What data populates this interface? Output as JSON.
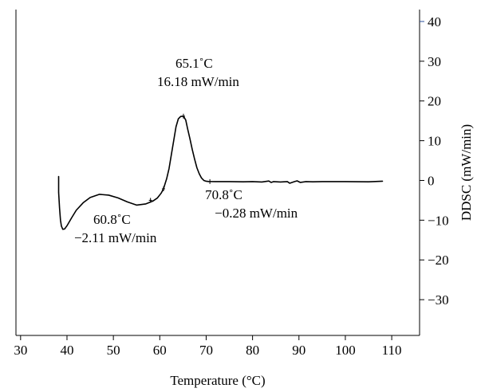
{
  "chart_data": {
    "type": "line",
    "title": "",
    "xlabel": "Temperature (°C)",
    "ylabel": "DDSC (mW/min)",
    "xlim": [
      29,
      116
    ],
    "ylim": [
      -39,
      43
    ],
    "x_ticks": [
      30,
      40,
      50,
      60,
      70,
      80,
      90,
      100,
      110
    ],
    "x_tick_labels": [
      "30",
      "40",
      "50",
      "60",
      "70",
      "80",
      "90",
      "100",
      "110"
    ],
    "y_ticks": [
      40,
      30,
      20,
      10,
      0,
      -10,
      -20,
      -30
    ],
    "y_tick_labels": [
      "40",
      "30",
      "20",
      "10",
      "0",
      "−10",
      "−20",
      "−30"
    ],
    "y_axis_side": "right",
    "grid": false,
    "series": [
      {
        "color": "#000000",
        "x": [
          38.2,
          38.2,
          38.4,
          38.6,
          38.8,
          39.1,
          39.5,
          40.0,
          41.0,
          42.0,
          43.5,
          45.0,
          47.0,
          49.0,
          51.0,
          53.0,
          55.0,
          57.0,
          58.5,
          59.5,
          60.3,
          60.8,
          61.5,
          62.0,
          62.5,
          63.0,
          63.5,
          64.0,
          64.5,
          65.1,
          65.6,
          66.0,
          66.5,
          67.0,
          67.5,
          68.0,
          68.5,
          69.0,
          69.5,
          70.0,
          70.5,
          70.8,
          72.0,
          75.0,
          78.0,
          80.0,
          82.0,
          83.5,
          84.0,
          84.5,
          86.0,
          87.5,
          88.0,
          89.0,
          89.6,
          90.3,
          91.5,
          93.0,
          95.0,
          100.0,
          105.0,
          108.0
        ],
        "y": [
          1.0,
          -3.0,
          -7.0,
          -10.0,
          -11.5,
          -12.3,
          -12.2,
          -11.4,
          -9.4,
          -7.5,
          -5.6,
          -4.3,
          -3.5,
          -3.7,
          -4.4,
          -5.4,
          -6.2,
          -5.9,
          -5.2,
          -4.4,
          -3.2,
          -2.11,
          0.5,
          3.0,
          6.5,
          10.0,
          13.5,
          15.5,
          16.1,
          16.18,
          15.2,
          13.0,
          10.5,
          7.8,
          5.4,
          3.2,
          1.7,
          0.6,
          0.0,
          -0.2,
          -0.27,
          -0.28,
          -0.3,
          -0.3,
          -0.35,
          -0.3,
          -0.4,
          -0.15,
          -0.5,
          -0.3,
          -0.4,
          -0.3,
          -0.7,
          -0.3,
          -0.1,
          -0.5,
          -0.3,
          -0.35,
          -0.3,
          -0.3,
          -0.35,
          -0.2
        ]
      }
    ],
    "markers": [
      {
        "x": 58.0,
        "y": -5.0
      },
      {
        "x": 60.8,
        "y": -2.11
      },
      {
        "x": 65.1,
        "y": 16.18
      },
      {
        "x": 70.8,
        "y": -0.28
      }
    ],
    "annotations": [
      {
        "id": "peak-temp",
        "text": "65.1˚C",
        "x": 65.1,
        "y": 16.18
      },
      {
        "id": "peak-value",
        "text": "16.18 mW/min",
        "x": 65.1,
        "y": 16.18
      },
      {
        "id": "onset-temp",
        "text": "60.8˚C",
        "x": 60.8,
        "y": -2.11
      },
      {
        "id": "onset-value",
        "text": "−2.11 mW/min",
        "x": 60.8,
        "y": -2.11
      },
      {
        "id": "end-temp",
        "text": "70.8˚C",
        "x": 70.8,
        "y": -0.28
      },
      {
        "id": "end-value",
        "text": "−0.28 mW/min",
        "x": 70.8,
        "y": -0.28
      }
    ],
    "colors": {
      "axis": "#000000",
      "right_tick_accent": "#2b4f9c",
      "curve": "#000000"
    }
  }
}
